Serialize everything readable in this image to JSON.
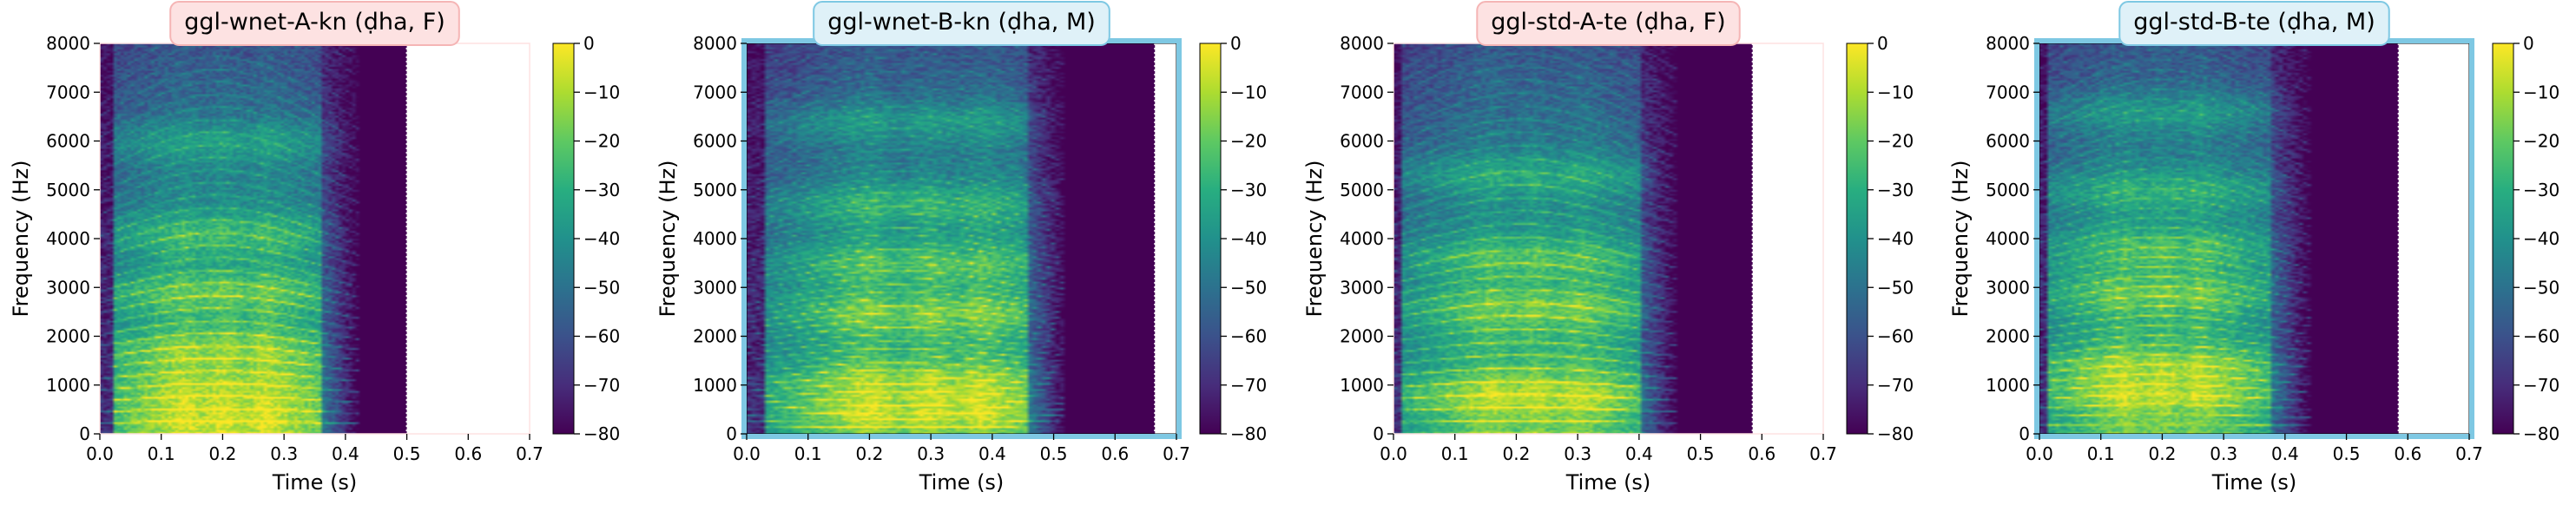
{
  "chart_data": [
    {
      "type": "heatmap",
      "title": "ggl-wnet-A-kn (ḍha, F)",
      "title_box_color": "#fde2e2",
      "title_border_color": "#f5b5b5",
      "frame_color": "#fde2e2",
      "xlabel": "Time (s)",
      "ylabel": "Frequency (Hz)",
      "xlim": [
        0,
        0.7
      ],
      "ylim": [
        0,
        8000
      ],
      "xticks": [
        "0.0",
        "0.1",
        "0.2",
        "0.3",
        "0.4",
        "0.5",
        "0.6",
        "0.7"
      ],
      "yticks": [
        "0",
        "1000",
        "2000",
        "3000",
        "4000",
        "5000",
        "6000",
        "7000",
        "8000"
      ],
      "audio_end": 0.5,
      "voiced": [
        0.02,
        0.36
      ],
      "f0": 230,
      "energy_centers": [
        0.14,
        0.2,
        0.27
      ],
      "formant_bands": [
        300,
        900,
        1700,
        2900,
        4100,
        6000
      ],
      "colorbar": {
        "label": "",
        "range": [
          -80,
          0
        ],
        "ticks": [
          "0",
          "−10",
          "−20",
          "−30",
          "−40",
          "−50",
          "−60",
          "−70",
          "−80"
        ]
      },
      "colormap": "viridis"
    },
    {
      "type": "heatmap",
      "title": "ggl-wnet-B-kn (ḍha, M)",
      "title_box_color": "#dff1f8",
      "title_border_color": "#7ec8e3",
      "frame_color": "#7ec8e3",
      "xlabel": "Time (s)",
      "ylabel": "Frequency (Hz)",
      "xlim": [
        0,
        0.7
      ],
      "ylim": [
        0,
        8000
      ],
      "xticks": [
        "0.0",
        "0.1",
        "0.2",
        "0.3",
        "0.4",
        "0.5",
        "0.6",
        "0.7"
      ],
      "yticks": [
        "0",
        "1000",
        "2000",
        "3000",
        "4000",
        "5000",
        "6000",
        "7000",
        "8000"
      ],
      "audio_end": 0.665,
      "voiced": [
        0.03,
        0.46
      ],
      "f0": 130,
      "energy_centers": [
        0.2,
        0.3,
        0.38
      ],
      "formant_bands": [
        500,
        1000,
        2500,
        3500,
        4700,
        6400
      ],
      "colorbar": {
        "label": "",
        "range": [
          -80,
          0
        ],
        "ticks": [
          "0",
          "−10",
          "−20",
          "−30",
          "−40",
          "−50",
          "−60",
          "−70",
          "−80"
        ]
      },
      "colormap": "viridis"
    },
    {
      "type": "heatmap",
      "title": "ggl-std-A-te (ḍha, F)",
      "title_box_color": "#fde2e2",
      "title_border_color": "#f5b5b5",
      "frame_color": "#fde2e2",
      "xlabel": "Time (s)",
      "ylabel": "Frequency (Hz)",
      "xlim": [
        0,
        0.7
      ],
      "ylim": [
        0,
        8000
      ],
      "xticks": [
        "0.0",
        "0.1",
        "0.2",
        "0.3",
        "0.4",
        "0.5",
        "0.6",
        "0.7"
      ],
      "yticks": [
        "0",
        "1000",
        "2000",
        "3000",
        "4000",
        "5000",
        "6000",
        "7000",
        "8000"
      ],
      "audio_end": 0.585,
      "voiced": [
        0.01,
        0.4
      ],
      "f0": 240,
      "energy_centers": [
        0.16,
        0.23,
        0.3
      ],
      "formant_bands": [
        800,
        2600,
        3600,
        5300
      ],
      "colorbar": {
        "label": "",
        "range": [
          -80,
          0
        ],
        "ticks": [
          "0",
          "−10",
          "−20",
          "−30",
          "−40",
          "−50",
          "−60",
          "−70",
          "−80"
        ]
      },
      "colormap": "viridis"
    },
    {
      "type": "heatmap",
      "title": "ggl-std-B-te (ḍha, M)",
      "title_box_color": "#dff1f8",
      "title_border_color": "#7ec8e3",
      "frame_color": "#7ec8e3",
      "xlabel": "Time (s)",
      "ylabel": "Frequency (Hz)",
      "xlim": [
        0,
        0.7
      ],
      "ylim": [
        0,
        8000
      ],
      "xticks": [
        "0.0",
        "0.1",
        "0.2",
        "0.3",
        "0.4",
        "0.5",
        "0.6",
        "0.7"
      ],
      "yticks": [
        "0",
        "1000",
        "2000",
        "3000",
        "4000",
        "5000",
        "6000",
        "7000",
        "8000"
      ],
      "audio_end": 0.585,
      "voiced": [
        0.01,
        0.38
      ],
      "f0": 180,
      "energy_centers": [
        0.14,
        0.2,
        0.26
      ],
      "formant_bands": [
        900,
        1300,
        2900,
        3800,
        5000,
        6600
      ],
      "colorbar": {
        "label": "",
        "range": [
          -80,
          0
        ],
        "ticks": [
          "0",
          "−10",
          "−20",
          "−30",
          "−40",
          "−50",
          "−60",
          "−70",
          "−80"
        ]
      },
      "colormap": "viridis"
    }
  ]
}
